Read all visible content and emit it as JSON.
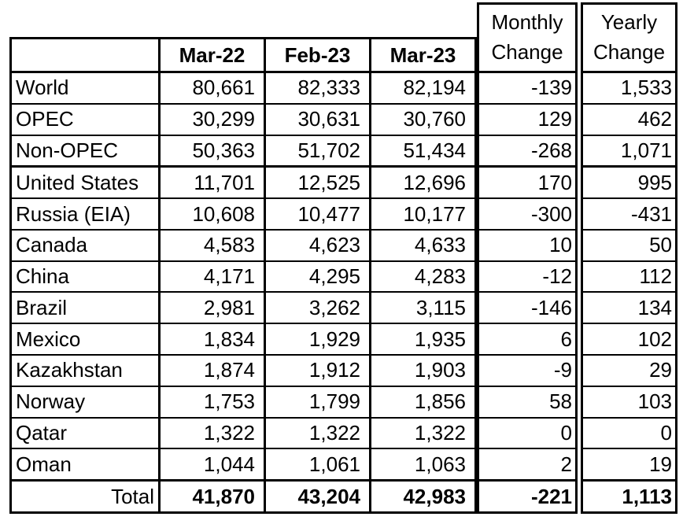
{
  "header": {
    "months": [
      "Mar-22",
      "Feb-23",
      "Mar-23"
    ],
    "monthly": {
      "line1": "Monthly",
      "line2": "Change"
    },
    "yearly": {
      "line1": "Yearly",
      "line2": "Change"
    }
  },
  "colors": {
    "border": "#000000",
    "background": "#ffffff",
    "text": "#000000"
  },
  "rows": [
    {
      "label": "World",
      "mar22": "80,661",
      "feb23": "82,333",
      "mar23": "82,194",
      "monthly_change": "-139",
      "yearly_change": "1,533"
    },
    {
      "label": "OPEC",
      "mar22": "30,299",
      "feb23": "30,631",
      "mar23": "30,760",
      "monthly_change": "129",
      "yearly_change": "462"
    },
    {
      "label": "Non-OPEC",
      "mar22": "50,363",
      "feb23": "51,702",
      "mar23": "51,434",
      "monthly_change": "-268",
      "yearly_change": "1,071",
      "thick_border_after": true
    },
    {
      "label": "United States",
      "mar22": "11,701",
      "feb23": "12,525",
      "mar23": "12,696",
      "monthly_change": "170",
      "yearly_change": "995"
    },
    {
      "label": "Russia (EIA)",
      "mar22": "10,608",
      "feb23": "10,477",
      "mar23": "10,177",
      "monthly_change": "-300",
      "yearly_change": "-431"
    },
    {
      "label": "Canada",
      "mar22": "4,583",
      "feb23": "4,623",
      "mar23": "4,633",
      "monthly_change": "10",
      "yearly_change": "50"
    },
    {
      "label": "China",
      "mar22": "4,171",
      "feb23": "4,295",
      "mar23": "4,283",
      "monthly_change": "-12",
      "yearly_change": "112"
    },
    {
      "label": "Brazil",
      "mar22": "2,981",
      "feb23": "3,262",
      "mar23": "3,115",
      "monthly_change": "-146",
      "yearly_change": "134"
    },
    {
      "label": "Mexico",
      "mar22": "1,834",
      "feb23": "1,929",
      "mar23": "1,935",
      "monthly_change": "6",
      "yearly_change": "102"
    },
    {
      "label": "Kazakhstan",
      "mar22": "1,874",
      "feb23": "1,912",
      "mar23": "1,903",
      "monthly_change": "-9",
      "yearly_change": "29"
    },
    {
      "label": "Norway",
      "mar22": "1,753",
      "feb23": "1,799",
      "mar23": "1,856",
      "monthly_change": "58",
      "yearly_change": "103"
    },
    {
      "label": "Qatar",
      "mar22": "1,322",
      "feb23": "1,322",
      "mar23": "1,322",
      "monthly_change": "0",
      "yearly_change": "0"
    },
    {
      "label": "Oman",
      "mar22": "1,044",
      "feb23": "1,061",
      "mar23": "1,063",
      "monthly_change": "2",
      "yearly_change": "19",
      "thick_border_after": true
    },
    {
      "label": "Total",
      "mar22": "41,870",
      "feb23": "43,204",
      "mar23": "42,983",
      "monthly_change": "-221",
      "yearly_change": "1,113",
      "is_total": true
    }
  ],
  "chart_data": {
    "type": "table",
    "columns": [
      "",
      "Mar-22",
      "Feb-23",
      "Mar-23",
      "Monthly Change",
      "Yearly Change"
    ],
    "rows": [
      [
        "World",
        80661,
        82333,
        82194,
        -139,
        1533
      ],
      [
        "OPEC",
        30299,
        30631,
        30760,
        129,
        462
      ],
      [
        "Non-OPEC",
        50363,
        51702,
        51434,
        -268,
        1071
      ],
      [
        "United States",
        11701,
        12525,
        12696,
        170,
        995
      ],
      [
        "Russia (EIA)",
        10608,
        10477,
        10177,
        -300,
        -431
      ],
      [
        "Canada",
        4583,
        4623,
        4633,
        10,
        50
      ],
      [
        "China",
        4171,
        4295,
        4283,
        -12,
        112
      ],
      [
        "Brazil",
        2981,
        3262,
        3115,
        -146,
        134
      ],
      [
        "Mexico",
        1834,
        1929,
        1935,
        6,
        102
      ],
      [
        "Kazakhstan",
        1874,
        1912,
        1903,
        -9,
        29
      ],
      [
        "Norway",
        1753,
        1799,
        1856,
        58,
        103
      ],
      [
        "Qatar",
        1322,
        1322,
        1322,
        0,
        0
      ],
      [
        "Oman",
        1044,
        1061,
        1063,
        2,
        19
      ],
      [
        "Total",
        41870,
        43204,
        42983,
        -221,
        1113
      ]
    ],
    "notes": "Bold styling: month column headers and Total row numeric values. Thick group separators after Non-OPEC and Oman rows."
  }
}
